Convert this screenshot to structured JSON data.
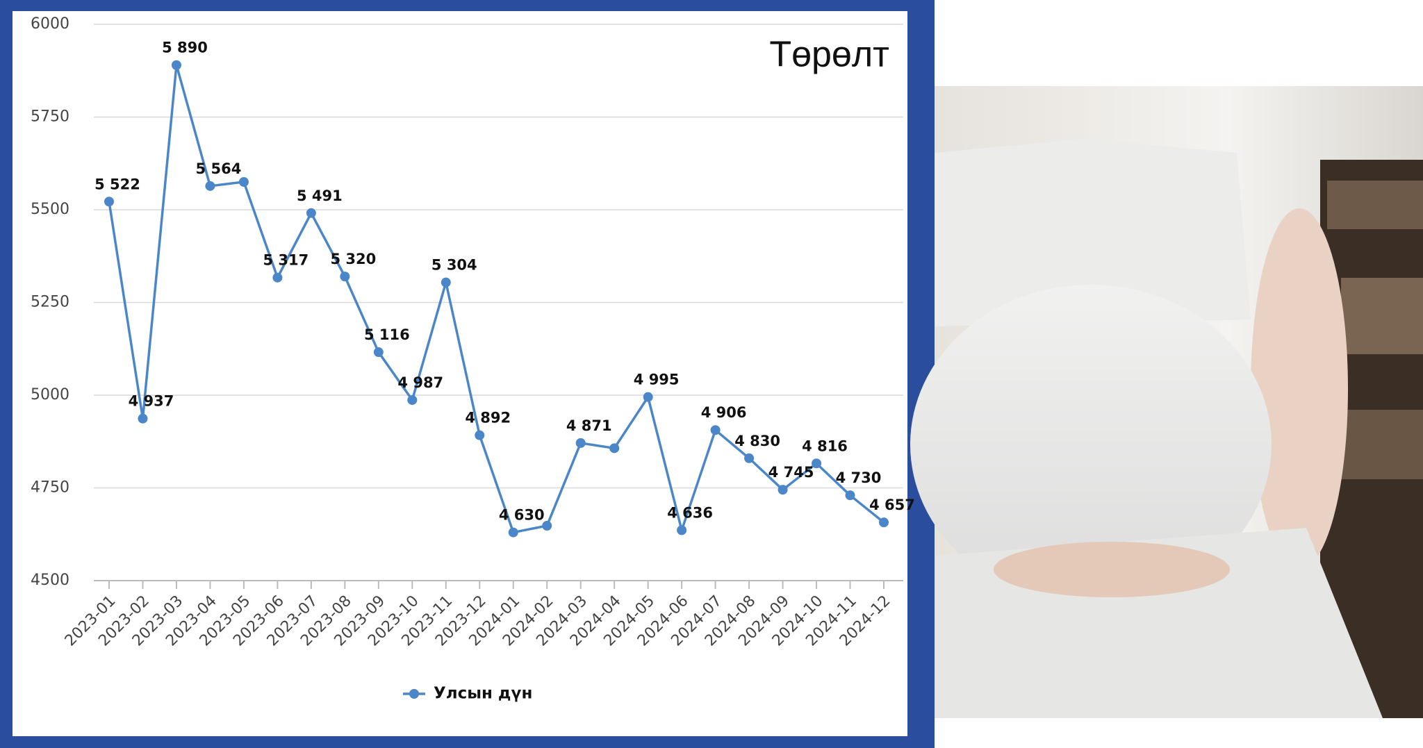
{
  "chart_data": {
    "type": "line",
    "title": "Төрөлт",
    "x": [
      "2023-01",
      "2023-02",
      "2023-03",
      "2023-04",
      "2023-05",
      "2023-06",
      "2023-07",
      "2023-08",
      "2023-09",
      "2023-10",
      "2023-11",
      "2023-12",
      "2024-01",
      "2024-02",
      "2024-03",
      "2024-04",
      "2024-05",
      "2024-06",
      "2024-07",
      "2024-08",
      "2024-09",
      "2024-10",
      "2024-11",
      "2024-12"
    ],
    "series": [
      {
        "name": "Улсын дүн",
        "color": "#4a86c8",
        "values": [
          5522,
          4937,
          5890,
          5564,
          5575,
          5317,
          5491,
          5320,
          5116,
          4987,
          5304,
          4892,
          4630,
          4648,
          4871,
          4857,
          4995,
          4636,
          4906,
          4830,
          4745,
          4816,
          4730,
          4657
        ],
        "value_labels": [
          "5 522",
          "4 937",
          "5 890",
          "5 564",
          null,
          "5 317",
          "5 491",
          "5 320",
          "5 116",
          "4 987",
          "5 304",
          "4 892",
          "4 630",
          null,
          "4 871",
          null,
          "4 995",
          "4 636",
          "4 906",
          "4 830",
          "4 745",
          "4 816",
          "4 730",
          "4 657"
        ]
      }
    ],
    "ylim": [
      4500,
      6000
    ],
    "yticks": [
      4500,
      4750,
      5000,
      5250,
      5500,
      5750,
      6000
    ],
    "grid": true,
    "legend": "bottom"
  }
}
